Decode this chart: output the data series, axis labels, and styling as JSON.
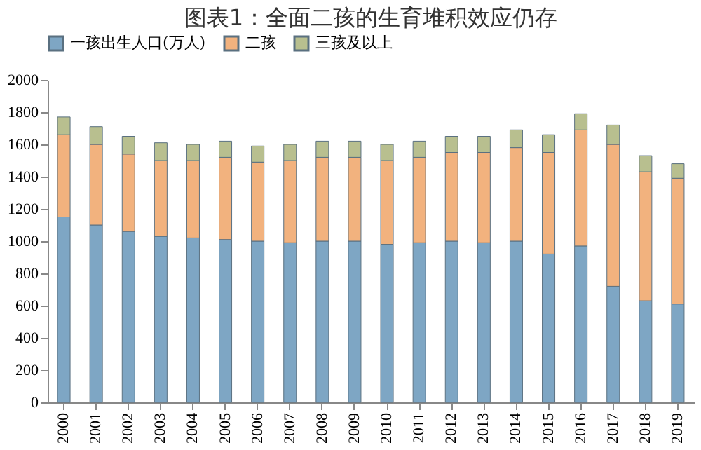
{
  "chart_data": {
    "type": "bar",
    "title": "图表1：全面二孩的生育堆积效应仍存",
    "stacked": true,
    "categories": [
      "2000",
      "2001",
      "2002",
      "2003",
      "2004",
      "2005",
      "2006",
      "2007",
      "2008",
      "2009",
      "2010",
      "2011",
      "2012",
      "2013",
      "2014",
      "2015",
      "2016",
      "2017",
      "2018",
      "2019"
    ],
    "series": [
      {
        "name": "一孩出生人口(万人)",
        "color": "#7ea6c4",
        "values": [
          1150,
          1100,
          1060,
          1030,
          1020,
          1010,
          1000,
          990,
          1000,
          1000,
          980,
          990,
          1000,
          990,
          1000,
          920,
          970,
          720,
          630,
          610
        ]
      },
      {
        "name": "二孩",
        "color": "#f2b27e",
        "values": [
          510,
          500,
          480,
          470,
          480,
          510,
          490,
          510,
          520,
          520,
          520,
          530,
          550,
          560,
          580,
          630,
          720,
          880,
          800,
          780
        ]
      },
      {
        "name": "三孩及以上",
        "color": "#b8bf8f",
        "values": [
          110,
          110,
          110,
          110,
          100,
          100,
          100,
          100,
          100,
          100,
          100,
          100,
          100,
          100,
          110,
          110,
          100,
          120,
          100,
          90
        ]
      }
    ],
    "ylim": [
      0,
      2000
    ],
    "yticks": [
      0,
      200,
      400,
      600,
      800,
      1000,
      1200,
      1400,
      1600,
      1800,
      2000
    ],
    "grid": false,
    "legend": "top"
  }
}
